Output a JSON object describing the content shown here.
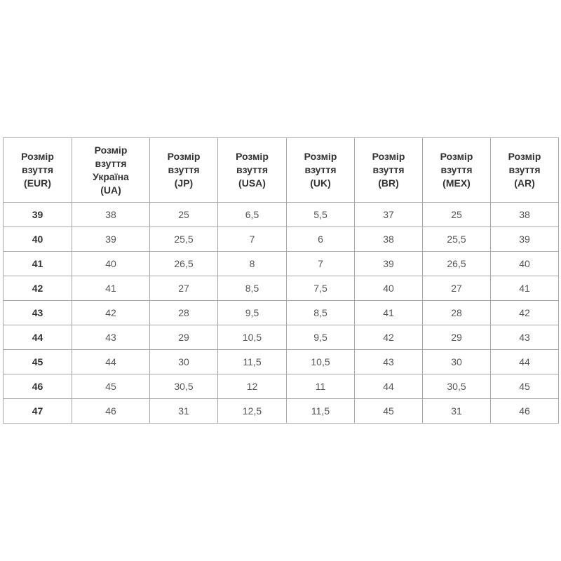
{
  "table": {
    "headers": [
      [
        "Розмір",
        "взуття",
        "(EUR)"
      ],
      [
        "Розмір",
        "взуття",
        "Україна",
        "(UA)"
      ],
      [
        "Розмір",
        "взуття",
        "(JP)"
      ],
      [
        "Розмір",
        "взуття",
        "(USA)"
      ],
      [
        "Розмір",
        "взуття",
        "(UK)"
      ],
      [
        "Розмір",
        "взуття",
        "(BR)"
      ],
      [
        "Розмір",
        "взуття",
        "(MEX)"
      ],
      [
        "Розмір",
        "взуття",
        "(AR)"
      ]
    ],
    "rows": [
      [
        "39",
        "38",
        "25",
        "6,5",
        "5,5",
        "37",
        "25",
        "38"
      ],
      [
        "40",
        "39",
        "25,5",
        "7",
        "6",
        "38",
        "25,5",
        "39"
      ],
      [
        "41",
        "40",
        "26,5",
        "8",
        "7",
        "39",
        "26,5",
        "40"
      ],
      [
        "42",
        "41",
        "27",
        "8,5",
        "7,5",
        "40",
        "27",
        "41"
      ],
      [
        "43",
        "42",
        "28",
        "9,5",
        "8,5",
        "41",
        "28",
        "42"
      ],
      [
        "44",
        "43",
        "29",
        "10,5",
        "9,5",
        "42",
        "29",
        "43"
      ],
      [
        "45",
        "44",
        "30",
        "11,5",
        "10,5",
        "43",
        "30",
        "44"
      ],
      [
        "46",
        "45",
        "30,5",
        "12",
        "11",
        "44",
        "30,5",
        "45"
      ],
      [
        "47",
        "46",
        "31",
        "12,5",
        "11,5",
        "45",
        "31",
        "46"
      ]
    ]
  }
}
